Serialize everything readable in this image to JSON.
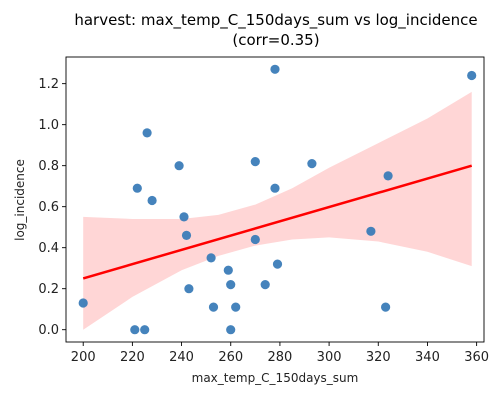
{
  "chart_data": {
    "type": "scatter",
    "title_line1": "harvest: max_temp_C_150days_sum vs log_incidence",
    "title_line2": "(corr=0.35)",
    "xlabel": "max_temp_C_150days_sum",
    "ylabel": "log_incidence",
    "xlim": [
      193,
      363
    ],
    "ylim": [
      -0.06,
      1.33
    ],
    "xticks": [
      200,
      220,
      240,
      260,
      280,
      300,
      320,
      340,
      360
    ],
    "yticks": [
      0.0,
      0.2,
      0.4,
      0.6,
      0.8,
      1.0,
      1.2
    ],
    "ytick_labels": [
      "0.0",
      "0.2",
      "0.4",
      "0.6",
      "0.8",
      "1.0",
      "1.2"
    ],
    "points": [
      {
        "x": 200,
        "y": 0.13
      },
      {
        "x": 221,
        "y": 0.0
      },
      {
        "x": 225,
        "y": 0.0
      },
      {
        "x": 222,
        "y": 0.69
      },
      {
        "x": 226,
        "y": 0.96
      },
      {
        "x": 228,
        "y": 0.63
      },
      {
        "x": 239,
        "y": 0.8
      },
      {
        "x": 241,
        "y": 0.55
      },
      {
        "x": 242,
        "y": 0.46
      },
      {
        "x": 243,
        "y": 0.2
      },
      {
        "x": 252,
        "y": 0.35
      },
      {
        "x": 253,
        "y": 0.11
      },
      {
        "x": 259,
        "y": 0.29
      },
      {
        "x": 260,
        "y": 0.22
      },
      {
        "x": 262,
        "y": 0.11
      },
      {
        "x": 260,
        "y": 0.0
      },
      {
        "x": 270,
        "y": 0.82
      },
      {
        "x": 270,
        "y": 0.44
      },
      {
        "x": 274,
        "y": 0.22
      },
      {
        "x": 278,
        "y": 1.27
      },
      {
        "x": 278,
        "y": 0.69
      },
      {
        "x": 279,
        "y": 0.32
      },
      {
        "x": 293,
        "y": 0.81
      },
      {
        "x": 317,
        "y": 0.48
      },
      {
        "x": 324,
        "y": 0.75
      },
      {
        "x": 323,
        "y": 0.11
      },
      {
        "x": 358,
        "y": 1.24
      }
    ],
    "regression": {
      "x": [
        200,
        358
      ],
      "y": [
        0.25,
        0.8
      ],
      "ci_upper": [
        {
          "x": 200,
          "y": 0.55
        },
        {
          "x": 220,
          "y": 0.54
        },
        {
          "x": 240,
          "y": 0.54
        },
        {
          "x": 255,
          "y": 0.56
        },
        {
          "x": 270,
          "y": 0.61
        },
        {
          "x": 285,
          "y": 0.69
        },
        {
          "x": 300,
          "y": 0.79
        },
        {
          "x": 320,
          "y": 0.91
        },
        {
          "x": 340,
          "y": 1.03
        },
        {
          "x": 358,
          "y": 1.16
        }
      ],
      "ci_lower": [
        {
          "x": 200,
          "y": 0.0
        },
        {
          "x": 220,
          "y": 0.16
        },
        {
          "x": 240,
          "y": 0.29
        },
        {
          "x": 255,
          "y": 0.36
        },
        {
          "x": 270,
          "y": 0.41
        },
        {
          "x": 285,
          "y": 0.44
        },
        {
          "x": 300,
          "y": 0.45
        },
        {
          "x": 320,
          "y": 0.43
        },
        {
          "x": 340,
          "y": 0.38
        },
        {
          "x": 358,
          "y": 0.31
        }
      ]
    },
    "grid": false,
    "colors": {
      "points": "#3b7cb8",
      "line": "#ff0000",
      "band": "#ff9999"
    }
  }
}
